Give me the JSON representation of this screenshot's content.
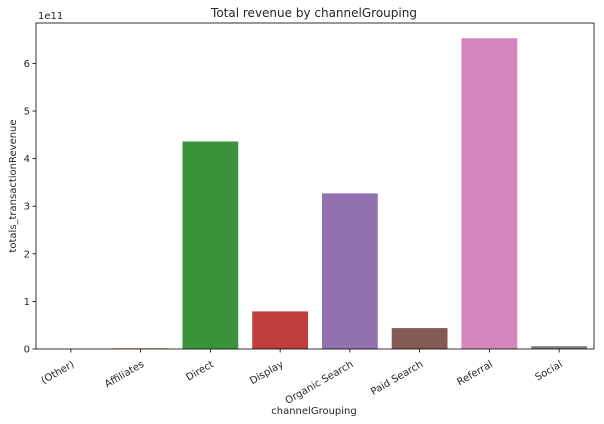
{
  "chart_data": {
    "type": "bar",
    "title": "Total revenue by channelGrouping",
    "xlabel": "channelGrouping",
    "ylabel": "totals_transactionRevenue",
    "y_multiplier_label": "1e11",
    "ylim": [
      0,
      6.85
    ],
    "yticks": [
      "0",
      "1",
      "2",
      "3",
      "4",
      "5",
      "6"
    ],
    "categories": [
      "(Other)",
      "Affiliates",
      "Direct",
      "Display",
      "Organic Search",
      "Paid Search",
      "Referral",
      "Social"
    ],
    "values": [
      0.0,
      0.015,
      4.36,
      0.79,
      3.27,
      0.44,
      6.53,
      0.06
    ],
    "colors": [
      "#3274a1",
      "#e1812c",
      "#3a923a",
      "#c03d3e",
      "#9372b2",
      "#845b53",
      "#d684bd",
      "#7f7f7f"
    ],
    "grid": false,
    "legend": "none"
  }
}
